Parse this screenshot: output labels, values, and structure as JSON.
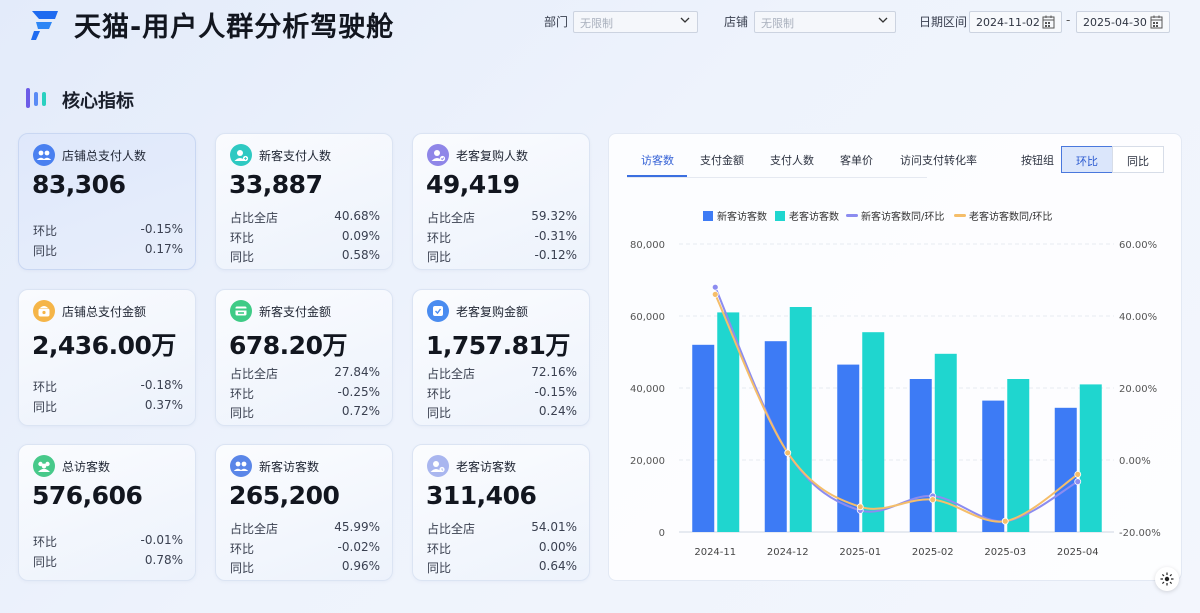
{
  "header": {
    "title": "天猫-用户人群分析驾驶舱",
    "dept_label": "部门",
    "dept_value": "无限制",
    "store_label": "店铺",
    "store_value": "无限制",
    "date_label": "日期区间",
    "date_start": "2024-11-02",
    "date_sep": "-",
    "date_end": "2025-04-30"
  },
  "section": {
    "title": "核心指标"
  },
  "cards": [
    {
      "title": "店铺总支付人数",
      "value": "83,306",
      "rows": [
        {
          "label": "环比",
          "value": "-0.15%"
        },
        {
          "label": "同比",
          "value": "0.17%"
        }
      ]
    },
    {
      "title": "新客支付人数",
      "value": "33,887",
      "rows": [
        {
          "label": "占比全店",
          "value": "40.68%"
        },
        {
          "label": "环比",
          "value": "0.09%"
        },
        {
          "label": "同比",
          "value": "0.58%"
        }
      ]
    },
    {
      "title": "老客复购人数",
      "value": "49,419",
      "rows": [
        {
          "label": "占比全店",
          "value": "59.32%"
        },
        {
          "label": "环比",
          "value": "-0.31%"
        },
        {
          "label": "同比",
          "value": "-0.12%"
        }
      ]
    },
    {
      "title": "店铺总支付金额",
      "value": "2,436.00万",
      "rows": [
        {
          "label": "环比",
          "value": "-0.18%"
        },
        {
          "label": "同比",
          "value": "0.37%"
        }
      ]
    },
    {
      "title": "新客支付金额",
      "value": "678.20万",
      "rows": [
        {
          "label": "占比全店",
          "value": "27.84%"
        },
        {
          "label": "环比",
          "value": "-0.25%"
        },
        {
          "label": "同比",
          "value": "0.72%"
        }
      ]
    },
    {
      "title": "老客复购金额",
      "value": "1,757.81万",
      "rows": [
        {
          "label": "占比全店",
          "value": "72.16%"
        },
        {
          "label": "环比",
          "value": "-0.15%"
        },
        {
          "label": "同比",
          "value": "0.24%"
        }
      ]
    },
    {
      "title": "总访客数",
      "value": "576,606",
      "rows": [
        {
          "label": "环比",
          "value": "-0.01%"
        },
        {
          "label": "同比",
          "value": "0.78%"
        }
      ]
    },
    {
      "title": "新客访客数",
      "value": "265,200",
      "rows": [
        {
          "label": "占比全店",
          "value": "45.99%"
        },
        {
          "label": "环比",
          "value": "-0.02%"
        },
        {
          "label": "同比",
          "value": "0.96%"
        }
      ]
    },
    {
      "title": "老客访客数",
      "value": "311,406",
      "rows": [
        {
          "label": "占比全店",
          "value": "54.01%"
        },
        {
          "label": "环比",
          "value": "0.00%"
        },
        {
          "label": "同比",
          "value": "0.64%"
        }
      ]
    }
  ],
  "chart_panel": {
    "tabs": [
      "访客数",
      "支付金额",
      "支付人数",
      "客单价",
      "访问支付转化率"
    ],
    "active_tab": "访客数",
    "button_group_label": "按钮组",
    "buttons": [
      "环比",
      "同比"
    ],
    "active_button": "环比"
  },
  "colors": {
    "new_bar": "#3d7bf5",
    "old_bar": "#1fd6cf",
    "new_line": "#8c8cf0",
    "old_line": "#f5be6a",
    "accent": "#3b6fe0"
  },
  "chart_data": {
    "type": "bar",
    "categories": [
      "2024-11",
      "2024-12",
      "2025-01",
      "2025-02",
      "2025-03",
      "2025-04"
    ],
    "series": [
      {
        "name": "新客访客数",
        "kind": "bar",
        "axis": "left",
        "values": [
          52000,
          53000,
          46500,
          42500,
          36500,
          34500
        ]
      },
      {
        "name": "老客访客数",
        "kind": "bar",
        "axis": "left",
        "values": [
          61000,
          62500,
          55500,
          49500,
          42500,
          41000
        ]
      },
      {
        "name": "新客访客数同/环比",
        "kind": "line",
        "axis": "right",
        "values": [
          48,
          2,
          -14,
          -10,
          -17,
          -6
        ]
      },
      {
        "name": "老客访客数同/环比",
        "kind": "line",
        "axis": "right",
        "values": [
          46,
          2,
          -13,
          -11,
          -17,
          -4
        ]
      }
    ],
    "y_left": {
      "min": 0,
      "max": 80000,
      "ticks": [
        "0",
        "20,000",
        "40,000",
        "60,000",
        "80,000"
      ]
    },
    "y_right": {
      "min": -20,
      "max": 60,
      "ticks": [
        "-20.00%",
        "0.00%",
        "20.00%",
        "40.00%",
        "60.00%"
      ]
    },
    "legend_position": "top-center",
    "grid": true
  }
}
